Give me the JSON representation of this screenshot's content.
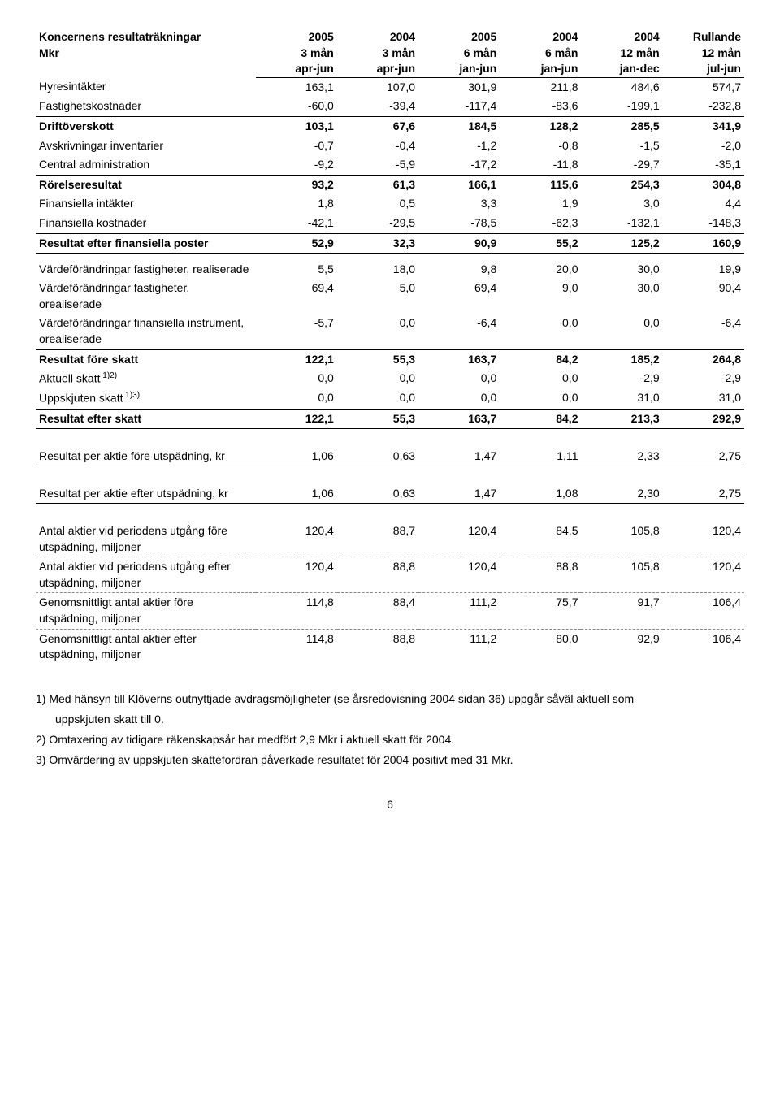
{
  "title_line1": "Koncernens resultaträkningar",
  "title_line2": "Mkr",
  "headers": {
    "r1": [
      "2005",
      "2004",
      "2005",
      "2004",
      "2004",
      "Rullande"
    ],
    "r2": [
      "3 mån",
      "3 mån",
      "6 mån",
      "6 mån",
      "12 mån",
      "12 mån"
    ],
    "r3": [
      "apr-jun",
      "apr-jun",
      "jan-jun",
      "jan-jun",
      "jan-dec",
      "jul-jun"
    ]
  },
  "rows": [
    {
      "label": "Hyresintäkter",
      "v": [
        "163,1",
        "107,0",
        "301,9",
        "211,8",
        "484,6",
        "574,7"
      ]
    },
    {
      "label": "Fastighetskostnader",
      "v": [
        "-60,0",
        "-39,4",
        "-117,4",
        "-83,6",
        "-199,1",
        "-232,8"
      ]
    },
    {
      "label": "Driftöverskott",
      "v": [
        "103,1",
        "67,6",
        "184,5",
        "128,2",
        "285,5",
        "341,9"
      ],
      "bold": true,
      "border_top": true
    },
    {
      "label": "Avskrivningar inventarier",
      "v": [
        "-0,7",
        "-0,4",
        "-1,2",
        "-0,8",
        "-1,5",
        "-2,0"
      ]
    },
    {
      "label": "Central administration",
      "v": [
        "-9,2",
        "-5,9",
        "-17,2",
        "-11,8",
        "-29,7",
        "-35,1"
      ]
    },
    {
      "label": "Rörelseresultat",
      "v": [
        "93,2",
        "61,3",
        "166,1",
        "115,6",
        "254,3",
        "304,8"
      ],
      "bold": true,
      "border_top": true
    },
    {
      "label": "Finansiella intäkter",
      "v": [
        "1,8",
        "0,5",
        "3,3",
        "1,9",
        "3,0",
        "4,4"
      ]
    },
    {
      "label": "Finansiella kostnader",
      "v": [
        "-42,1",
        "-29,5",
        "-78,5",
        "-62,3",
        "-132,1",
        "-148,3"
      ]
    },
    {
      "label": "Resultat efter finansiella poster",
      "v": [
        "52,9",
        "32,3",
        "90,9",
        "55,2",
        "125,2",
        "160,9"
      ],
      "bold": true,
      "border_top": true,
      "border_bottom": true
    },
    {
      "gap": true
    },
    {
      "label": "Värdeförändringar fastigheter, realiserade",
      "v": [
        "5,5",
        "18,0",
        "9,8",
        "20,0",
        "30,0",
        "19,9"
      ]
    },
    {
      "label": "Värdeförändringar fastigheter, orealiserade",
      "v": [
        "69,4",
        "5,0",
        "69,4",
        "9,0",
        "30,0",
        "90,4"
      ]
    },
    {
      "label": "Värdeförändringar finansiella instrument, orealiserade",
      "v": [
        "-5,7",
        "0,0",
        "-6,4",
        "0,0",
        "0,0",
        "-6,4"
      ]
    },
    {
      "label": "Resultat före skatt",
      "v": [
        "122,1",
        "55,3",
        "163,7",
        "84,2",
        "185,2",
        "264,8"
      ],
      "bold": true,
      "border_top": true
    },
    {
      "label": "Aktuell skatt",
      "sup": "1)2)",
      "v": [
        "0,0",
        "0,0",
        "0,0",
        "0,0",
        "-2,9",
        "-2,9"
      ]
    },
    {
      "label": "Uppskjuten skatt",
      "sup": "1)3)",
      "v": [
        "0,0",
        "0,0",
        "0,0",
        "0,0",
        "31,0",
        "31,0"
      ]
    },
    {
      "label": "Resultat efter skatt",
      "v": [
        "122,1",
        "55,3",
        "163,7",
        "84,2",
        "213,3",
        "292,9"
      ],
      "bold": true,
      "border_top": true,
      "border_bottom": true
    }
  ],
  "section2": [
    {
      "label": "Resultat per aktie före utspädning, kr",
      "v": [
        "1,06",
        "0,63",
        "1,47",
        "1,11",
        "2,33",
        "2,75"
      ],
      "border_bottom": true
    }
  ],
  "section3": [
    {
      "label": "Resultat per aktie efter utspädning, kr",
      "v": [
        "1,06",
        "0,63",
        "1,47",
        "1,08",
        "2,30",
        "2,75"
      ],
      "border_bottom": true
    }
  ],
  "section4": [
    {
      "label": "Antal aktier vid periodens utgång före utspädning, miljoner",
      "v": [
        "120,4",
        "88,7",
        "120,4",
        "84,5",
        "105,8",
        "120,4"
      ]
    },
    {
      "label": "Antal aktier vid periodens utgång efter utspädning, miljoner",
      "v": [
        "120,4",
        "88,8",
        "120,4",
        "88,8",
        "105,8",
        "120,4"
      ],
      "dashed_top": true
    },
    {
      "label": "Genomsnittligt antal aktier före utspädning, miljoner",
      "v": [
        "114,8",
        "88,4",
        "111,2",
        "75,7",
        "91,7",
        "106,4"
      ],
      "dashed_top": true
    },
    {
      "label": "Genomsnittligt antal aktier efter utspädning, miljoner",
      "v": [
        "114,8",
        "88,8",
        "111,2",
        "80,0",
        "92,9",
        "106,4"
      ],
      "dashed_top": true
    }
  ],
  "footnotes": [
    {
      "n": "1)",
      "text": "Med hänsyn till Klöverns outnyttjade avdragsmöjligheter (se årsredovisning 2004 sidan 36) uppgår såväl aktuell som",
      "cont": "uppskjuten skatt till 0."
    },
    {
      "n": "2)",
      "text": "Omtaxering av tidigare räkenskapsår har medfört 2,9 Mkr i aktuell skatt för 2004."
    },
    {
      "n": "3)",
      "text": "Omvärdering av uppskjuten skattefordran påverkade resultatet för 2004 positivt med 31 Mkr."
    }
  ],
  "page": "6"
}
